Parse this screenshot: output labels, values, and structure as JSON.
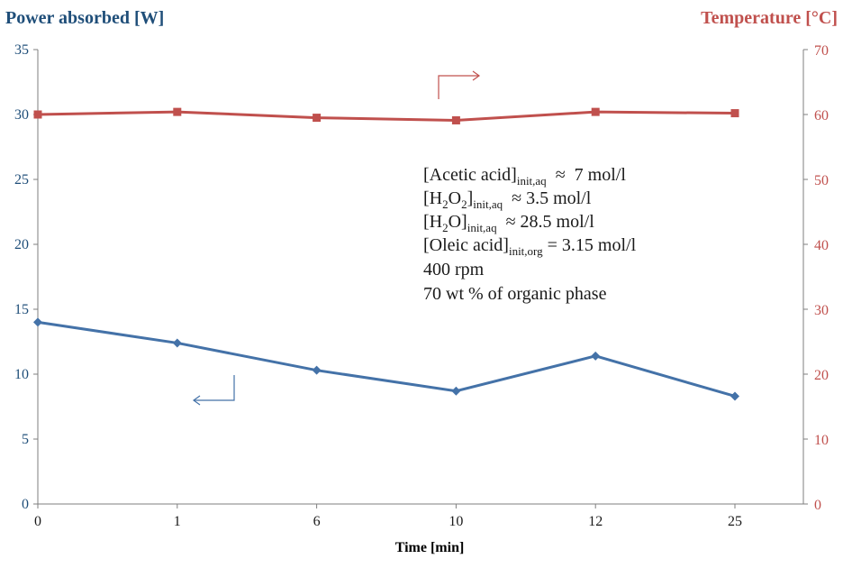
{
  "chart_data": {
    "type": "line",
    "title": "",
    "xlabel": "Time [min]",
    "ylabel_left": "Power absorbed [W]",
    "ylabel_right": "Temperature [°C]",
    "categories": [
      "0",
      "1",
      "6",
      "10",
      "12",
      "25"
    ],
    "ylim_left": [
      0,
      35
    ],
    "ylim_right": [
      0,
      70
    ],
    "yticks_left": [
      "0",
      "5",
      "10",
      "15",
      "20",
      "25",
      "30",
      "35"
    ],
    "yticks_right": [
      "0",
      "10",
      "20",
      "30",
      "40",
      "50",
      "60",
      "70"
    ],
    "grid": false,
    "series": [
      {
        "name": "Power absorbed [W]",
        "axis": "left",
        "marker": "diamond",
        "color": "#4472a8",
        "values": [
          14.0,
          12.4,
          10.3,
          8.7,
          11.4,
          8.3
        ]
      },
      {
        "name": "Temperature [°C]",
        "axis": "right",
        "marker": "square",
        "color": "#c0504d",
        "values": [
          60.0,
          60.4,
          59.5,
          59.1,
          60.4,
          60.2
        ]
      }
    ],
    "annotations": [
      {
        "main": "[Acetic acid]",
        "sub": "init,aq",
        "rest": "  ≈  7 mol/l"
      },
      {
        "main": "[H",
        "sub2": "2",
        "main2": "O",
        "sub3": "2",
        "main3": "]",
        "sub": "init,aq",
        "rest": "  ≈ 3.5 mol/l"
      },
      {
        "main": "[H",
        "sub2": "2",
        "main2": "O]",
        "sub": "init,aq",
        "rest": "  ≈ 28.5 mol/l"
      },
      {
        "main": "[Oleic acid]",
        "sub": "init,org",
        "rest": " = 3.15 mol/l"
      },
      {
        "main": "400 rpm"
      },
      {
        "main": "70 wt % of organic phase"
      }
    ],
    "colors": {
      "left_axis": "#1f4e79",
      "right_axis": "#c0504d",
      "axis_line": "#7f7f7f"
    }
  }
}
